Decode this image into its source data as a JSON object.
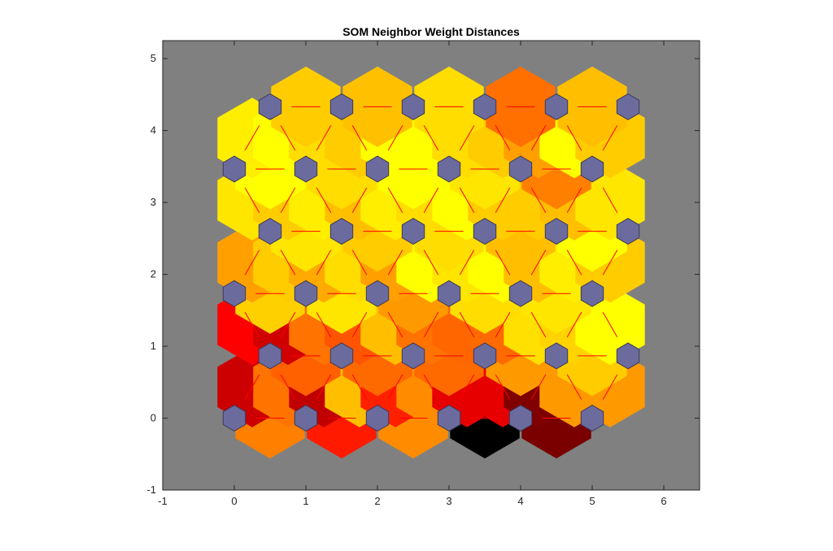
{
  "chart_data": {
    "type": "heatmap",
    "title": "SOM Neighbor Weight Distances",
    "xlabel": "",
    "ylabel": "",
    "xlim": [
      -1,
      6.5
    ],
    "ylim": [
      -1,
      5.25
    ],
    "xticks": [
      -1,
      0,
      1,
      2,
      3,
      4,
      5,
      6
    ],
    "yticks": [
      -1,
      0,
      1,
      2,
      3,
      4,
      5
    ],
    "grid": false,
    "colors": {
      "background": "#808080",
      "neuron": "#6b6b9e",
      "neuron_edge": "#3a3a5a",
      "connection_line": "#ff0000",
      "cell_edge": "#808080"
    },
    "neuron_grid": {
      "cols": 6,
      "rows": 6,
      "layout": "hexagonal"
    },
    "distance_cells": [
      {
        "x": 0.5,
        "y": 0,
        "color": "#ff8000"
      },
      {
        "x": 1.5,
        "y": 0,
        "color": "#ff1a00"
      },
      {
        "x": 2.5,
        "y": 0,
        "color": "#ff8c00"
      },
      {
        "x": 3.5,
        "y": 0,
        "color": "#000000"
      },
      {
        "x": 4.5,
        "y": 0,
        "color": "#7a0000"
      },
      {
        "x": 0.25,
        "y": 0.433,
        "color": "#cc0000"
      },
      {
        "x": 0.75,
        "y": 0.433,
        "color": "#ff7300"
      },
      {
        "x": 1.25,
        "y": 0.433,
        "color": "#c00000"
      },
      {
        "x": 1.75,
        "y": 0.433,
        "color": "#ffbf00"
      },
      {
        "x": 2.25,
        "y": 0.433,
        "color": "#ff2000"
      },
      {
        "x": 2.75,
        "y": 0.433,
        "color": "#ff8c00"
      },
      {
        "x": 3.25,
        "y": 0.433,
        "color": "#e60000"
      },
      {
        "x": 3.75,
        "y": 0.433,
        "color": "#e60000"
      },
      {
        "x": 4.25,
        "y": 0.433,
        "color": "#800000"
      },
      {
        "x": 4.75,
        "y": 0.433,
        "color": "#ff9900"
      },
      {
        "x": 5.25,
        "y": 0.433,
        "color": "#ff9900"
      },
      {
        "x": 1,
        "y": 0.866,
        "color": "#ff6000"
      },
      {
        "x": 2,
        "y": 0.866,
        "color": "#ff6a00"
      },
      {
        "x": 3,
        "y": 0.866,
        "color": "#ff6a00"
      },
      {
        "x": 4,
        "y": 0.866,
        "color": "#ff9900"
      },
      {
        "x": 5,
        "y": 0.866,
        "color": "#ffcc00"
      },
      {
        "x": 0.25,
        "y": 1.299,
        "color": "#ff0000"
      },
      {
        "x": 0.75,
        "y": 1.299,
        "color": "#d00000"
      },
      {
        "x": 1.25,
        "y": 1.299,
        "color": "#ff7300"
      },
      {
        "x": 1.75,
        "y": 1.299,
        "color": "#ff5500"
      },
      {
        "x": 2.25,
        "y": 1.299,
        "color": "#ffbf00"
      },
      {
        "x": 2.75,
        "y": 1.299,
        "color": "#ff7300"
      },
      {
        "x": 3.25,
        "y": 1.299,
        "color": "#ff6600"
      },
      {
        "x": 3.75,
        "y": 1.299,
        "color": "#ff6a00"
      },
      {
        "x": 4.25,
        "y": 1.299,
        "color": "#ffe000"
      },
      {
        "x": 4.75,
        "y": 1.299,
        "color": "#ffd400"
      },
      {
        "x": 5.25,
        "y": 1.299,
        "color": "#ffff00"
      },
      {
        "x": 0.5,
        "y": 1.732,
        "color": "#ffd000"
      },
      {
        "x": 1.5,
        "y": 1.732,
        "color": "#ffe600"
      },
      {
        "x": 2.5,
        "y": 1.732,
        "color": "#ff9900"
      },
      {
        "x": 3.5,
        "y": 1.732,
        "color": "#ffdd00"
      },
      {
        "x": 4.5,
        "y": 1.732,
        "color": "#ffe600"
      },
      {
        "x": 0.25,
        "y": 2.165,
        "color": "#ffa000"
      },
      {
        "x": 0.75,
        "y": 2.165,
        "color": "#ffcc00"
      },
      {
        "x": 1.25,
        "y": 2.165,
        "color": "#ffaa00"
      },
      {
        "x": 1.75,
        "y": 2.165,
        "color": "#ffdd00"
      },
      {
        "x": 2.25,
        "y": 2.165,
        "color": "#ffa000"
      },
      {
        "x": 2.75,
        "y": 2.165,
        "color": "#ffff00"
      },
      {
        "x": 3.25,
        "y": 2.165,
        "color": "#ffe600"
      },
      {
        "x": 3.75,
        "y": 2.165,
        "color": "#ffff00"
      },
      {
        "x": 4.25,
        "y": 2.165,
        "color": "#ffbf00"
      },
      {
        "x": 4.75,
        "y": 2.165,
        "color": "#ffee00"
      },
      {
        "x": 5.25,
        "y": 2.165,
        "color": "#ffcc00"
      },
      {
        "x": 1,
        "y": 2.598,
        "color": "#ffe600"
      },
      {
        "x": 2,
        "y": 2.598,
        "color": "#ffcc00"
      },
      {
        "x": 3,
        "y": 2.598,
        "color": "#ffdd00"
      },
      {
        "x": 4,
        "y": 2.598,
        "color": "#ffbf00"
      },
      {
        "x": 5,
        "y": 2.598,
        "color": "#ffff00"
      },
      {
        "x": 0.25,
        "y": 3.031,
        "color": "#ffe600"
      },
      {
        "x": 0.75,
        "y": 3.031,
        "color": "#ffcc00"
      },
      {
        "x": 1.25,
        "y": 3.031,
        "color": "#ffee00"
      },
      {
        "x": 1.75,
        "y": 3.031,
        "color": "#ffbf00"
      },
      {
        "x": 2.25,
        "y": 3.031,
        "color": "#ffee00"
      },
      {
        "x": 2.75,
        "y": 3.031,
        "color": "#ffdd00"
      },
      {
        "x": 3.25,
        "y": 3.031,
        "color": "#ffff00"
      },
      {
        "x": 3.75,
        "y": 3.031,
        "color": "#ffcc00"
      },
      {
        "x": 4.25,
        "y": 3.031,
        "color": "#ffcc00"
      },
      {
        "x": 4.75,
        "y": 3.031,
        "color": "#ffbf00"
      },
      {
        "x": 5.25,
        "y": 3.031,
        "color": "#ffe600"
      },
      {
        "x": 0.5,
        "y": 3.464,
        "color": "#ffff00"
      },
      {
        "x": 1.5,
        "y": 3.464,
        "color": "#ffdd00"
      },
      {
        "x": 2.5,
        "y": 3.464,
        "color": "#ffff00"
      },
      {
        "x": 3.5,
        "y": 3.464,
        "color": "#ffe600"
      },
      {
        "x": 4.5,
        "y": 3.464,
        "color": "#ff8000"
      },
      {
        "x": 0.25,
        "y": 3.897,
        "color": "#ffee00"
      },
      {
        "x": 0.75,
        "y": 3.897,
        "color": "#ffff00"
      },
      {
        "x": 1.25,
        "y": 3.897,
        "color": "#ffdd00"
      },
      {
        "x": 1.75,
        "y": 3.897,
        "color": "#ffcc00"
      },
      {
        "x": 2.25,
        "y": 3.897,
        "color": "#ffff00"
      },
      {
        "x": 2.75,
        "y": 3.897,
        "color": "#ffff00"
      },
      {
        "x": 3.25,
        "y": 3.897,
        "color": "#ffdd00"
      },
      {
        "x": 3.75,
        "y": 3.897,
        "color": "#ffcc00"
      },
      {
        "x": 4.25,
        "y": 3.897,
        "color": "#ffa000"
      },
      {
        "x": 4.75,
        "y": 3.897,
        "color": "#ffff00"
      },
      {
        "x": 5.25,
        "y": 3.897,
        "color": "#ffcc00"
      },
      {
        "x": 1,
        "y": 4.33,
        "color": "#ffcc00"
      },
      {
        "x": 2,
        "y": 4.33,
        "color": "#ffc000"
      },
      {
        "x": 3,
        "y": 4.33,
        "color": "#ffdd00"
      },
      {
        "x": 4,
        "y": 4.33,
        "color": "#ff7000"
      },
      {
        "x": 5,
        "y": 4.33,
        "color": "#ffbf00"
      }
    ]
  }
}
